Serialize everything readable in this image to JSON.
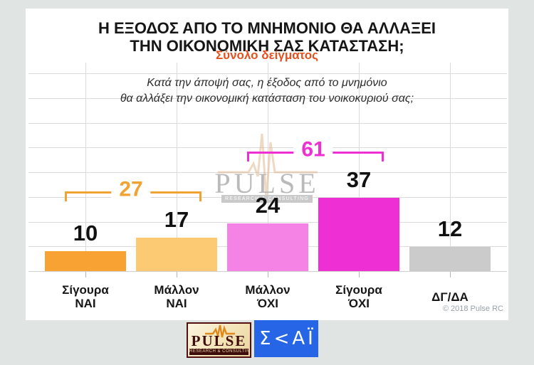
{
  "page": {
    "background": "#e0e4e3"
  },
  "header": {
    "title_lines": [
      "Η ΕΞΟΔΟΣ ΑΠΟ ΤΟ ΜΝΗΜΟΝΙΟ ΘΑ ΑΛΛΑΞΕΙ",
      "ΤΗΝ ΟΙΚΟΝΟΜΙΚΗ ΣΑΣ ΚΑΤΑΣΤΑΣΗ;"
    ],
    "subtitle": "Σύνολο δείγματος",
    "subtitle_color": "#e5511e"
  },
  "chart_data": {
    "type": "bar",
    "title": "Η ΕΞΟΔΟΣ ΑΠΟ ΤΟ ΜΝΗΜΟΝΙΟ ΘΑ ΑΛΛΑΞΕΙ ΤΗΝ ΟΙΚΟΝΟΜΙΚΗ ΣΑΣ ΚΑΤΑΣΤΑΣΗ;",
    "subtitle": "Σύνολο δείγματος",
    "question_lines": [
      "Κατά την άποψή σας, η έξοδος από το μνημόνιο",
      "θα αλλάξει την οικονομική κατάσταση του νοικοκυριού σας;"
    ],
    "categories": [
      "Σίγουρα ΝΑΙ",
      "Μάλλον ΝΑΙ",
      "Μάλλον ΌΧΙ",
      "Σίγουρα ΌΧΙ",
      "ΔΓ/ΔΑ"
    ],
    "category_lines": [
      [
        "Σίγουρα",
        "ΝΑΙ"
      ],
      [
        "Μάλλον",
        "ΝΑΙ"
      ],
      [
        "Μάλλον",
        "ΌΧΙ"
      ],
      [
        "Σίγουρα",
        "ΌΧΙ"
      ],
      [
        "ΔΓ/ΔΑ"
      ]
    ],
    "values": [
      10,
      17,
      24,
      37,
      12
    ],
    "bar_colors": [
      "#f7a233",
      "#fbca72",
      "#f583e6",
      "#ee2fd4",
      "#cbcbcb"
    ],
    "value_label_color": "#111111",
    "ylim": [
      0,
      100
    ],
    "grid": true,
    "legend": "none",
    "annotations": [
      {
        "label": "27",
        "value": 27,
        "from_category": 0,
        "to_category": 1,
        "color": "#f0a233",
        "y": 257
      },
      {
        "label": "61",
        "value": 61,
        "from_category": 2,
        "to_category": 3,
        "color": "#ee2fd4",
        "y": 201
      }
    ]
  },
  "watermark": {
    "name": "PULSE",
    "tagline": "RESEARCH & CONSULTING"
  },
  "footer": {
    "copyright": "© 2018 Pulse RC"
  },
  "logos": {
    "pulse": {
      "name": "PULSE",
      "tagline": "RESEARCH & CONSULTING"
    },
    "skai": {
      "display": "Σ<ΑΪ",
      "color": "#2565e6"
    }
  }
}
